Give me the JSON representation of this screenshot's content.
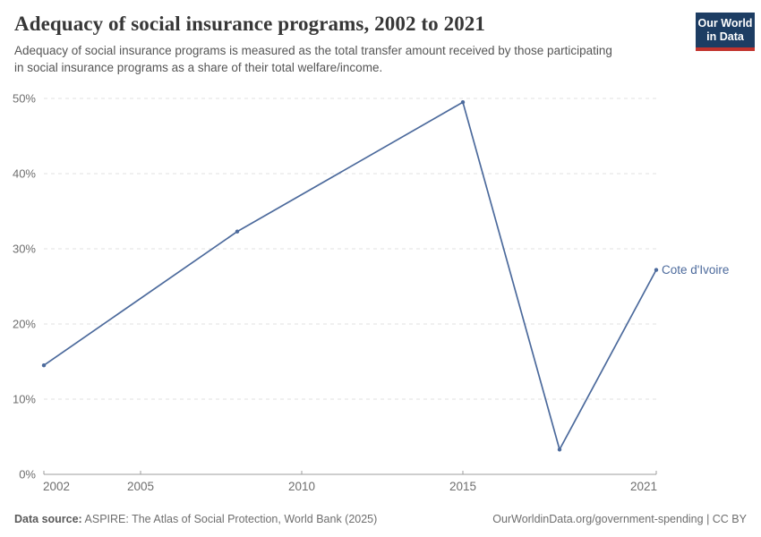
{
  "header": {
    "title": "Adequacy of social insurance programs, 2002 to 2021",
    "subtitle": "Adequacy of social insurance programs is measured as the total transfer amount received by those participating in social insurance programs as a share of their total welfare/income."
  },
  "logo": {
    "line1": "Our World",
    "line2": "in Data",
    "bg_color": "#1d3d63",
    "accent_color": "#c2332d"
  },
  "chart_data": {
    "type": "line",
    "title": "Adequacy of social insurance programs, 2002 to 2021",
    "xlabel": "",
    "ylabel": "",
    "xlim": [
      2002,
      2021
    ],
    "ylim": [
      0,
      50
    ],
    "x_ticks": [
      2002,
      2005,
      2010,
      2015,
      2021
    ],
    "y_ticks": [
      0,
      10,
      20,
      30,
      40,
      50
    ],
    "y_tick_suffix": "%",
    "grid": "horizontal-dashed",
    "legend_position": "end-of-line-label",
    "series": [
      {
        "name": "Cote d'Ivoire",
        "color": "#4c6a9c",
        "points": [
          {
            "year": 2002,
            "value": 14.5
          },
          {
            "year": 2008,
            "value": 32.3
          },
          {
            "year": 2015,
            "value": 49.5
          },
          {
            "year": 2018,
            "value": 3.3
          },
          {
            "year": 2021,
            "value": 27.2
          }
        ]
      }
    ]
  },
  "footer": {
    "datasource_label": "Data source:",
    "datasource_text": " ASPIRE: The Atlas of Social Protection, World Bank (2025)",
    "note_right": "OurWorldinData.org/government-spending | CC BY"
  },
  "colors": {
    "grid": "#e0e0e0",
    "axis": "#9e9e9e",
    "tick_label": "#6e6e6e",
    "title": "#373737",
    "subtitle": "#555555"
  }
}
